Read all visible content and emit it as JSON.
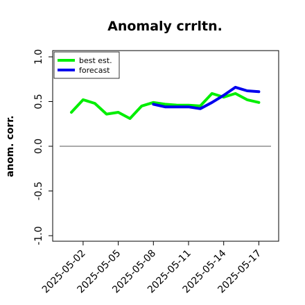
{
  "chart_data": {
    "type": "line",
    "title": "Anomaly crrltn.",
    "xlabel": "",
    "ylabel": "anom. corr.",
    "ylim": [
      -1.0,
      1.0
    ],
    "yticks": [
      "-1.0",
      "-0.5",
      "0.0",
      "0.5",
      "1.0"
    ],
    "x": [
      "2025-05-01",
      "2025-05-02",
      "2025-05-03",
      "2025-05-04",
      "2025-05-05",
      "2025-05-06",
      "2025-05-07",
      "2025-05-08",
      "2025-05-09",
      "2025-05-10",
      "2025-05-11",
      "2025-05-12",
      "2025-05-13",
      "2025-05-14",
      "2025-05-15",
      "2025-05-16",
      "2025-05-17"
    ],
    "xticks": [
      {
        "label": "2025-05-02",
        "color": "#000000"
      },
      {
        "label": "2025-05-05",
        "color": "#000000"
      },
      {
        "label": "2025-05-08",
        "color": "#2e8b2e"
      },
      {
        "label": "2025-05-11",
        "color": "#000000"
      },
      {
        "label": "2025-05-14",
        "color": "#000000"
      },
      {
        "label": "2025-05-17",
        "color": "#000000"
      }
    ],
    "reference_line": 0.0,
    "grid": false,
    "legend_position": "top-left",
    "series": [
      {
        "name": "best est.",
        "color": "#00ee00",
        "points": [
          [
            "2025-05-01",
            0.38
          ],
          [
            "2025-05-02",
            0.52
          ],
          [
            "2025-05-03",
            0.48
          ],
          [
            "2025-05-04",
            0.36
          ],
          [
            "2025-05-05",
            0.38
          ],
          [
            "2025-05-06",
            0.31
          ],
          [
            "2025-05-07",
            0.45
          ],
          [
            "2025-05-08",
            0.49
          ],
          [
            "2025-05-09",
            0.47
          ],
          [
            "2025-05-10",
            0.46
          ],
          [
            "2025-05-11",
            0.46
          ],
          [
            "2025-05-12",
            0.45
          ],
          [
            "2025-05-13",
            0.59
          ],
          [
            "2025-05-14",
            0.55
          ],
          [
            "2025-05-15",
            0.59
          ],
          [
            "2025-05-16",
            0.52
          ],
          [
            "2025-05-17",
            0.49
          ]
        ]
      },
      {
        "name": "forecast",
        "color": "#0000ee",
        "points": [
          [
            "2025-05-08",
            0.47
          ],
          [
            "2025-05-09",
            0.44
          ],
          [
            "2025-05-10",
            0.44
          ],
          [
            "2025-05-11",
            0.44
          ],
          [
            "2025-05-12",
            0.42
          ],
          [
            "2025-05-13",
            0.49
          ],
          [
            "2025-05-14",
            0.57
          ],
          [
            "2025-05-15",
            0.66
          ],
          [
            "2025-05-16",
            0.62
          ],
          [
            "2025-05-17",
            0.61
          ]
        ]
      }
    ]
  }
}
